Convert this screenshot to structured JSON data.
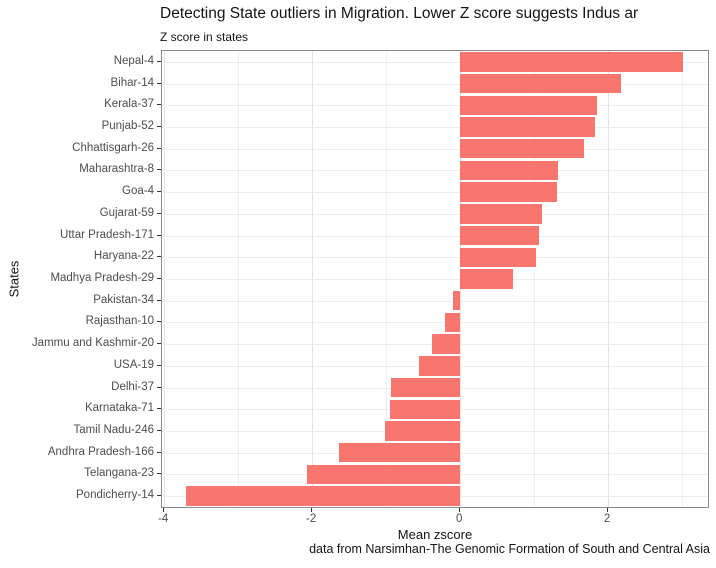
{
  "chart_data": {
    "type": "bar",
    "orientation": "horizontal",
    "title": "Detecting State outliers in Migration. Lower Z score suggests Indus ar",
    "subtitle": "Z score in states",
    "xlabel": "Mean zscore",
    "ylabel": "States",
    "caption": "data from Narsimhan-The Genomic Formation of South and Central Asia",
    "categories": [
      "Nepal-4",
      "Bihar-14",
      "Kerala-37",
      "Punjab-52",
      "Chhattisgarh-26",
      "Maharashtra-8",
      "Goa-4",
      "Gujarat-59",
      "Uttar Pradesh-171",
      "Haryana-22",
      "Madhya Pradesh-29",
      "Pakistan-34",
      "Rajasthan-10",
      "Jammu and Kashmir-20",
      "USA-19",
      "Delhi-37",
      "Karnataka-71",
      "Tamil Nadu-246",
      "Andhra Pradesh-166",
      "Telangana-23",
      "Pondicherry-14"
    ],
    "values": [
      3.01,
      2.17,
      1.85,
      1.82,
      1.68,
      1.32,
      1.31,
      1.11,
      1.07,
      1.02,
      0.72,
      -0.1,
      -0.21,
      -0.38,
      -0.56,
      -0.93,
      -0.95,
      -1.01,
      -1.64,
      -2.07,
      -3.7
    ],
    "xticks": [
      -4,
      -2,
      0,
      2
    ],
    "xlim": [
      -4.03,
      3.35
    ],
    "grid": true,
    "legend": "none",
    "bar_color": "#F8766D",
    "bar_width_ratio": 0.9
  }
}
